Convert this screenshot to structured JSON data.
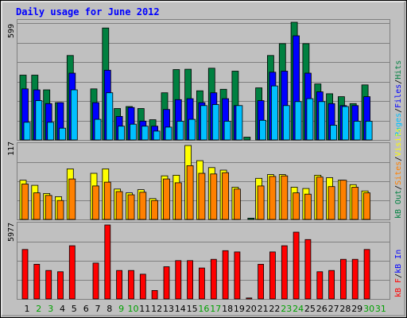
{
  "chart_data": {
    "type": "bar",
    "title": "Daily usage for June 2012",
    "categories": [
      "1",
      "2",
      "3",
      "4",
      "5",
      "6",
      "7",
      "8",
      "9",
      "10",
      "11",
      "12",
      "13",
      "14",
      "15",
      "16",
      "17",
      "18",
      "19",
      "20",
      "21",
      "22",
      "23",
      "24",
      "25",
      "26",
      "27",
      "28",
      "29",
      "30",
      "31"
    ],
    "weekend_days": [
      "2",
      "3",
      "9",
      "10",
      "16",
      "17",
      "23",
      "24",
      "30",
      "31"
    ],
    "panels": [
      {
        "name": "top",
        "max_label": "599",
        "ylim": [
          0,
          599
        ],
        "legend": [
          "Pages",
          "/",
          "Files",
          "/",
          "Hits"
        ],
        "series": [
          {
            "name": "Hits",
            "color": "#008040",
            "values": [
              330,
              330,
              255,
              190,
              430,
              0,
              260,
              570,
              160,
              170,
              160,
              103,
              240,
              358,
              360,
              250,
              365,
              258,
              350,
              14,
              265,
              430,
              490,
              600,
              490,
              285,
              235,
              220,
              185,
              280,
              0
            ]
          },
          {
            "name": "Files",
            "color": "#0000ff",
            "values": [
              260,
              255,
              185,
              190,
              340,
              0,
              190,
              355,
              120,
              165,
              96,
              70,
              155,
              205,
              210,
              190,
              240,
              210,
              175,
              0,
              200,
              345,
              350,
              530,
              340,
              245,
              185,
              175,
              175,
              220,
              0
            ]
          },
          {
            "name": "Pages",
            "color": "#00c0ff",
            "values": [
              90,
              200,
              90,
              60,
              255,
              0,
              105,
              240,
              70,
              80,
              70,
              45,
              65,
              95,
              105,
              175,
              180,
              95,
              175,
              0,
              100,
              275,
              175,
              195,
              210,
              195,
              75,
              170,
              95,
              95,
              0
            ]
          }
        ]
      },
      {
        "name": "middle",
        "max_label": "117",
        "ylim": [
          0,
          117
        ],
        "legend": [
          "Visits",
          "/",
          "Sites",
          "/",
          "kB Out"
        ],
        "series": [
          {
            "name": "Visits",
            "color": "#ffff00",
            "values": [
              62,
              54,
              41,
              36,
              80,
              0,
              73,
              80,
              48,
              42,
              47,
              33,
              69,
              70,
              117,
              93,
              82,
              78,
              51,
              0,
              65,
              71,
              71,
              51,
              49,
              70,
              66,
              62,
              55,
              45,
              0
            ]
          },
          {
            "name": "Sites",
            "color": "#ff8000",
            "values": [
              56,
              42,
              38,
              30,
              64,
              0,
              53,
              59,
              44,
              39,
              43,
              30,
              64,
              58,
              85,
              73,
              72,
              74,
              48,
              0,
              53,
              68,
              69,
              42,
              40,
              67,
              52,
              62,
              51,
              42,
              0
            ]
          },
          {
            "name": "kB Out",
            "color": "#008040",
            "values": [
              0,
              0,
              0,
              0,
              0,
              0,
              0,
              0,
              0,
              0,
              0,
              0,
              0,
              0,
              0,
              0,
              0,
              0,
              0,
              2,
              0,
              0,
              0,
              0,
              0,
              0,
              0,
              0,
              0,
              0,
              0
            ]
          }
        ]
      },
      {
        "name": "bottom",
        "max_label": "5977",
        "ylim": [
          0,
          5977
        ],
        "legend": [
          "kB F",
          "/",
          "kB In"
        ],
        "series": [
          {
            "name": "kB F",
            "color": "#ff0000",
            "values": [
              4000,
              2800,
              2300,
              2200,
              4300,
              0,
              2900,
              6100,
              2300,
              2300,
              2000,
              680,
              2600,
              3100,
              3100,
              2500,
              3200,
              3900,
              3800,
              80,
              2800,
              3800,
              4300,
              5400,
              4800,
              2200,
              2300,
              3200,
              3200,
              4000,
              0
            ]
          },
          {
            "name": "kB In",
            "color": "#0000ff",
            "values": [
              0,
              0,
              0,
              0,
              0,
              0,
              0,
              0,
              0,
              0,
              0,
              0,
              0,
              0,
              0,
              0,
              0,
              0,
              0,
              0,
              0,
              0,
              0,
              0,
              0,
              0,
              0,
              0,
              0,
              0,
              0
            ]
          }
        ]
      }
    ],
    "grid": true
  }
}
